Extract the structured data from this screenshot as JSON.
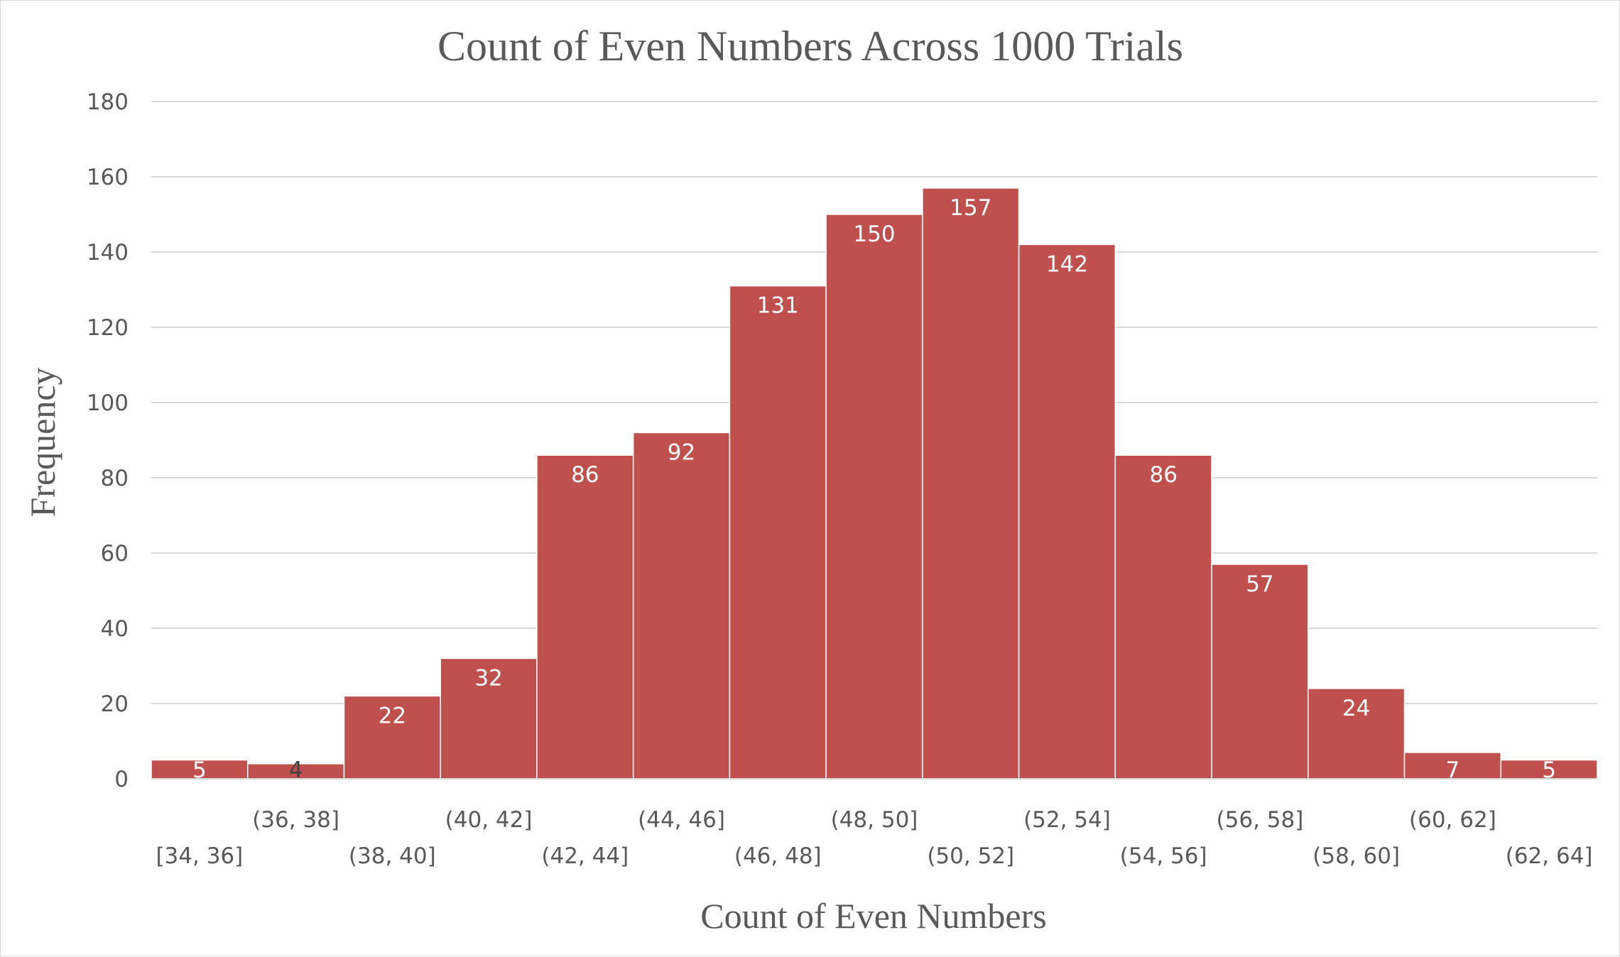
{
  "chart_data": {
    "type": "bar",
    "title": "Count of Even Numbers Across 1000 Trials",
    "xlabel": "Count of Even Numbers",
    "ylabel": "Frequency",
    "categories": [
      "[34, 36]",
      "(36, 38]",
      "(38, 40]",
      "(40, 42]",
      "(42, 44]",
      "(44, 46]",
      "(46, 48]",
      "(48, 50]",
      "(50, 52]",
      "(52, 54]",
      "(54, 56]",
      "(56, 58]",
      "(58, 60]",
      "(60, 62]",
      "(62, 64]"
    ],
    "values": [
      5,
      4,
      22,
      32,
      86,
      92,
      131,
      150,
      157,
      142,
      86,
      57,
      24,
      7,
      5
    ],
    "ylim": [
      0,
      180
    ],
    "yticks": [
      0,
      20,
      40,
      60,
      80,
      100,
      120,
      140,
      160,
      180
    ],
    "grid": true,
    "legend": "none",
    "bar_color": "#c0504d",
    "label_color_inside": "#ffffff",
    "label_color_small": "#404040",
    "gridline_color": "#d9d9d9",
    "text_color": "#595959"
  }
}
